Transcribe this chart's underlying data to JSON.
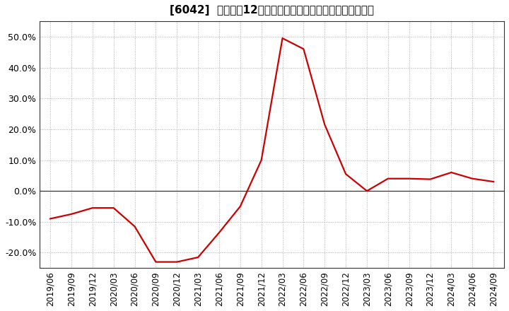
{
  "title": "[6042]  売上高の12か月移動合計の対前年同期増減率の推移",
  "line_color": "#cc0000",
  "background_color": "#ffffff",
  "plot_bg_color": "#ffffff",
  "grid_color": "#aaaaaa",
  "dates": [
    "2019/06",
    "2019/09",
    "2019/12",
    "2020/03",
    "2020/06",
    "2020/09",
    "2020/12",
    "2021/03",
    "2021/06",
    "2021/09",
    "2021/12",
    "2022/03",
    "2022/06",
    "2022/09",
    "2022/12",
    "2023/03",
    "2023/06",
    "2023/09",
    "2023/12",
    "2024/03",
    "2024/06",
    "2024/09"
  ],
  "values": [
    -9.0,
    -7.5,
    -5.5,
    -5.5,
    -11.5,
    -23.0,
    -23.0,
    -21.5,
    -13.5,
    -5.0,
    10.0,
    49.5,
    46.0,
    21.5,
    5.5,
    0.0,
    4.0,
    4.0,
    3.8,
    6.0,
    4.0,
    3.0
  ],
  "ylim": [
    -25.0,
    55.0
  ],
  "yticks": [
    -20.0,
    -10.0,
    0.0,
    10.0,
    20.0,
    30.0,
    40.0,
    50.0
  ],
  "zero_line_color": "#333333",
  "spine_color": "#333333",
  "title_fontsize": 11,
  "tick_fontsize": 8.5,
  "ytick_fontsize": 9
}
